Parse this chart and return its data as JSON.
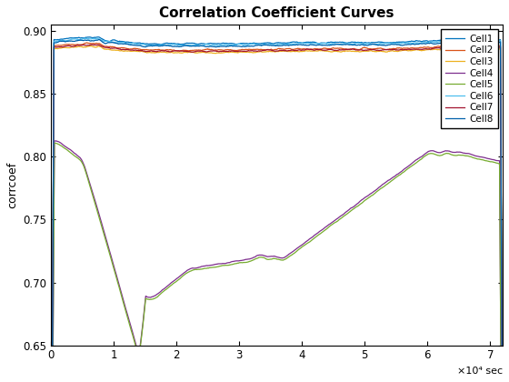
{
  "title": "Correlation Coefficient Curves",
  "ylabel": "corrcoef",
  "xlabel": "sec",
  "xlim": [
    0,
    72000
  ],
  "ylim": [
    0.65,
    0.905
  ],
  "legend_labels": [
    "Cell1",
    "Cell2",
    "Cell3",
    "Cell4",
    "Cell5",
    "Cell6",
    "Cell7",
    "Cell8"
  ],
  "colors": [
    "#0072BD",
    "#D95319",
    "#EDB120",
    "#7E2F8E",
    "#77AC30",
    "#4DBEEE",
    "#A2142F",
    "#0060AA"
  ],
  "linewidth": 0.9,
  "background": "#FFFFFF"
}
